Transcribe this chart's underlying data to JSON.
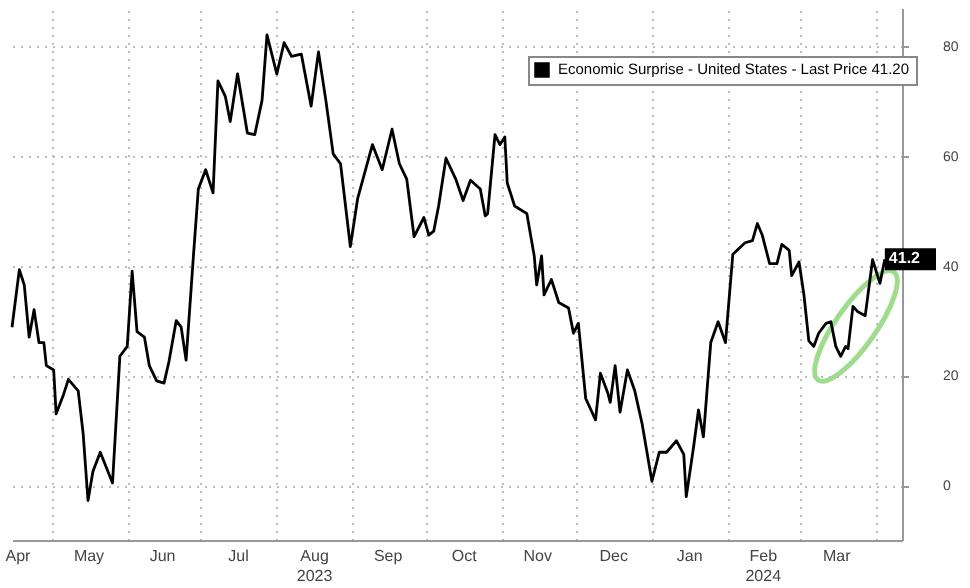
{
  "chart_data": {
    "type": "line",
    "x": [
      "2023-04-15",
      "2023-04-18",
      "2023-04-20",
      "2023-04-22",
      "2023-04-24",
      "2023-04-26",
      "2023-04-28",
      "2023-04-29",
      "2023-05-02",
      "2023-05-03",
      "2023-05-06",
      "2023-05-08",
      "2023-05-12",
      "2023-05-14",
      "2023-05-16",
      "2023-05-18",
      "2023-05-21",
      "2023-05-26",
      "2023-05-29",
      "2023-06-01",
      "2023-06-03",
      "2023-06-05",
      "2023-06-08",
      "2023-06-10",
      "2023-06-13",
      "2023-06-16",
      "2023-06-18",
      "2023-06-21",
      "2023-06-23",
      "2023-06-25",
      "2023-06-28",
      "2023-06-30",
      "2023-07-03",
      "2023-07-06",
      "2023-07-08",
      "2023-07-11",
      "2023-07-13",
      "2023-07-16",
      "2023-07-20",
      "2023-07-23",
      "2023-07-26",
      "2023-07-28",
      "2023-08-01",
      "2023-08-04",
      "2023-08-07",
      "2023-08-11",
      "2023-08-15",
      "2023-08-18",
      "2023-08-21",
      "2023-08-24",
      "2023-08-27",
      "2023-08-31",
      "2023-09-03",
      "2023-09-09",
      "2023-09-13",
      "2023-09-17",
      "2023-09-20",
      "2023-09-23",
      "2023-09-26",
      "2023-09-30",
      "2023-10-02",
      "2023-10-04",
      "2023-10-06",
      "2023-10-09",
      "2023-10-13",
      "2023-10-16",
      "2023-10-19",
      "2023-10-23",
      "2023-10-25",
      "2023-10-26",
      "2023-10-29",
      "2023-10-31",
      "2023-11-02",
      "2023-11-03",
      "2023-11-06",
      "2023-11-11",
      "2023-11-14",
      "2023-11-15",
      "2023-11-17",
      "2023-11-18",
      "2023-11-21",
      "2023-11-24",
      "2023-11-28",
      "2023-11-30",
      "2023-12-02",
      "2023-12-05",
      "2023-12-09",
      "2023-12-11",
      "2023-12-14",
      "2023-12-15",
      "2023-12-17",
      "2023-12-19",
      "2023-12-22",
      "2023-12-25",
      "2023-12-28",
      "2024-01-01",
      "2024-01-04",
      "2024-01-07",
      "2024-01-11",
      "2024-01-14",
      "2024-01-15",
      "2024-01-18",
      "2024-01-20",
      "2024-01-22",
      "2024-01-25",
      "2024-01-28",
      "2024-01-31",
      "2024-02-03",
      "2024-02-08",
      "2024-02-11",
      "2024-02-13",
      "2024-02-15",
      "2024-02-18",
      "2024-02-21",
      "2024-02-23",
      "2024-02-26",
      "2024-02-27",
      "2024-03-01",
      "2024-03-03",
      "2024-03-05",
      "2024-03-07",
      "2024-03-09",
      "2024-03-12",
      "2024-03-14",
      "2024-03-16",
      "2024-03-18",
      "2024-03-20",
      "2024-03-21",
      "2024-03-23",
      "2024-03-25",
      "2024-03-28",
      "2024-03-31",
      "2024-04-03",
      "2024-04-05"
    ],
    "series": [
      {
        "name": "Economic Surprise - United States - Last Price 41.20",
        "color": "#000000",
        "values": [
          28.8,
          39.3,
          36.5,
          27,
          32,
          26,
          26,
          21.8,
          21,
          13,
          16.5,
          19.3,
          17.2,
          9.5,
          -2.8,
          2.5,
          6,
          0.4,
          23.5,
          25.3,
          39,
          28,
          27,
          21.8,
          19,
          18.6,
          22.5,
          30,
          28.8,
          22.8,
          41.8,
          54,
          57.5,
          53.3,
          73.7,
          70.9,
          66.3,
          75,
          64.2,
          63.9,
          70.2,
          82.1,
          75,
          80.7,
          78.2,
          78.6,
          69.1,
          79,
          70.2,
          60.4,
          58.6,
          43.5,
          52.3,
          62.1,
          57.5,
          64.9,
          58.6,
          55.8,
          45.3,
          48.8,
          45.6,
          46.3,
          50.9,
          59.6,
          55.8,
          51.9,
          55.6,
          54,
          49.1,
          49.5,
          63.9,
          62.1,
          63.5,
          55.1,
          50.9,
          49.5,
          41.8,
          36.5,
          41.8,
          34.7,
          37.5,
          33.3,
          32.3,
          27.7,
          29.5,
          15.8,
          11.9,
          20.4,
          16.8,
          15.1,
          21.8,
          13.3,
          21,
          17.2,
          11.2,
          0.7,
          6,
          6,
          8.1,
          5.6,
          -2.1,
          7,
          13.7,
          8.8,
          26,
          29.8,
          26,
          42.1,
          44.2,
          44.6,
          47.7,
          45.6,
          40.4,
          40.4,
          43.9,
          42.8,
          38.2,
          40.7,
          34.7,
          26.3,
          25.3,
          27.7,
          29.5,
          29.8,
          25.3,
          23.5,
          25.3,
          24.9,
          32.6,
          31.6,
          30.9,
          41.1,
          36.8,
          41.2
        ]
      }
    ],
    "xlim": [
      "2023-04-15",
      "2024-04-12"
    ],
    "xticks": [
      {
        "value": "2023-04-17",
        "label": "Apr"
      },
      {
        "value": "2023-05-01",
        "label": null
      },
      {
        "value": "2023-05-16",
        "label": "May"
      },
      {
        "value": "2023-06-01",
        "label": null
      },
      {
        "value": "2023-06-15",
        "label": "Jun"
      },
      {
        "value": "2023-07-01",
        "label": null
      },
      {
        "value": "2023-07-16",
        "label": "Jul"
      },
      {
        "value": "2023-08-01",
        "label": null
      },
      {
        "value": "2023-08-16",
        "label": "Aug\n2023"
      },
      {
        "value": "2023-09-01",
        "label": null
      },
      {
        "value": "2023-09-15",
        "label": "Sep"
      },
      {
        "value": "2023-10-01",
        "label": null
      },
      {
        "value": "2023-10-16",
        "label": "Oct"
      },
      {
        "value": "2023-11-01",
        "label": null
      },
      {
        "value": "2023-11-15",
        "label": "Nov"
      },
      {
        "value": "2023-12-01",
        "label": null
      },
      {
        "value": "2023-12-16",
        "label": "Dec"
      },
      {
        "value": "2024-01-01",
        "label": null
      },
      {
        "value": "2024-01-16",
        "label": "Jan"
      },
      {
        "value": "2024-02-01",
        "label": null
      },
      {
        "value": "2024-02-15",
        "label": "Feb\n2024"
      },
      {
        "value": "2024-03-01",
        "label": null
      },
      {
        "value": "2024-03-16",
        "label": "Mar"
      },
      {
        "value": "2024-04-01",
        "label": null
      }
    ],
    "ylim": [
      -10,
      87
    ],
    "yticks": [
      0,
      20,
      40,
      60,
      80
    ],
    "grid": true,
    "legend": "top",
    "annotations": [
      {
        "text": "41.2",
        "x": "2024-04-05",
        "y": 41.2
      }
    ]
  }
}
